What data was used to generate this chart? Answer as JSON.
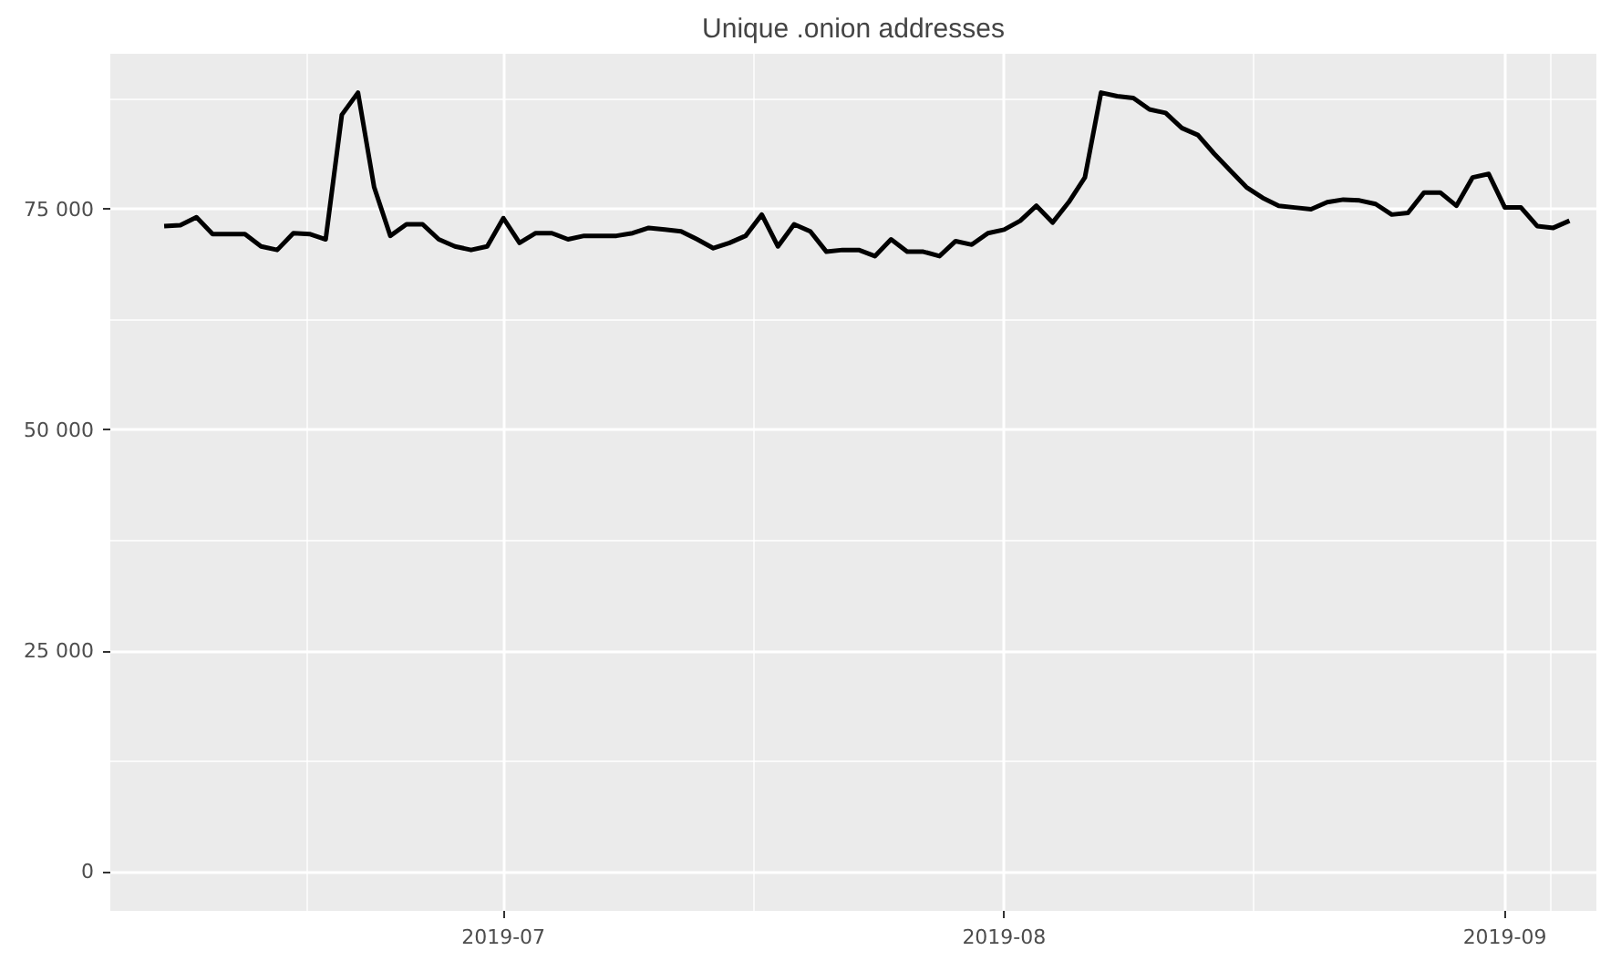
{
  "chart_data": {
    "type": "line",
    "title": "Unique .onion addresses",
    "x": [
      "2019-06-10",
      "2019-06-11",
      "2019-06-12",
      "2019-06-13",
      "2019-06-14",
      "2019-06-15",
      "2019-06-16",
      "2019-06-17",
      "2019-06-18",
      "2019-06-19",
      "2019-06-20",
      "2019-06-21",
      "2019-06-22",
      "2019-06-23",
      "2019-06-24",
      "2019-06-25",
      "2019-06-26",
      "2019-06-27",
      "2019-06-28",
      "2019-06-29",
      "2019-06-30",
      "2019-07-01",
      "2019-07-02",
      "2019-07-03",
      "2019-07-04",
      "2019-07-05",
      "2019-07-06",
      "2019-07-07",
      "2019-07-08",
      "2019-07-09",
      "2019-07-10",
      "2019-07-11",
      "2019-07-12",
      "2019-07-13",
      "2019-07-14",
      "2019-07-15",
      "2019-07-16",
      "2019-07-17",
      "2019-07-18",
      "2019-07-19",
      "2019-07-20",
      "2019-07-21",
      "2019-07-22",
      "2019-07-23",
      "2019-07-24",
      "2019-07-25",
      "2019-07-26",
      "2019-07-27",
      "2019-07-28",
      "2019-07-29",
      "2019-07-30",
      "2019-07-31",
      "2019-08-01",
      "2019-08-02",
      "2019-08-03",
      "2019-08-04",
      "2019-08-05",
      "2019-08-06",
      "2019-08-07",
      "2019-08-08",
      "2019-08-09",
      "2019-08-10",
      "2019-08-11",
      "2019-08-12",
      "2019-08-13",
      "2019-08-14",
      "2019-08-15",
      "2019-08-16",
      "2019-08-17",
      "2019-08-18",
      "2019-08-19",
      "2019-08-20",
      "2019-08-21",
      "2019-08-22",
      "2019-08-23",
      "2019-08-24",
      "2019-08-25",
      "2019-08-26",
      "2019-08-27",
      "2019-08-28",
      "2019-08-29",
      "2019-08-30",
      "2019-08-31",
      "2019-09-01",
      "2019-09-02",
      "2019-09-03",
      "2019-09-04",
      "2019-09-05"
    ],
    "series": [
      {
        "color": "#000000",
        "values": [
          73100,
          73200,
          74100,
          72200,
          72200,
          72200,
          70800,
          70400,
          72300,
          72200,
          71600,
          85700,
          88200,
          77500,
          72000,
          73300,
          73300,
          71600,
          70800,
          70400,
          70800,
          74000,
          71200,
          72300,
          72300,
          71600,
          72000,
          72000,
          72000,
          72300,
          72900,
          72700,
          72500,
          71600,
          70600,
          71200,
          72000,
          74400,
          70800,
          73300,
          72500,
          70200,
          70400,
          70400,
          69700,
          71600,
          70200,
          70200,
          69700,
          71400,
          71000,
          72300,
          72700,
          73700,
          75400,
          73500,
          75800,
          78600,
          88200,
          87800,
          87600,
          86300,
          85900,
          84200,
          83400,
          81300,
          79400,
          77500,
          76300,
          75400,
          75200,
          75000,
          75800,
          76100,
          76000,
          75600,
          74400,
          74600,
          76900,
          76900,
          75400,
          78600,
          79000,
          75200,
          75200,
          73100,
          72900,
          73700
        ]
      }
    ],
    "xlim": [
      "2019-06-06T16:00",
      "2019-09-06T16:00"
    ],
    "xticks": [
      {
        "value": "2019-07-01",
        "label": "2019-07"
      },
      {
        "value": "2019-08-01",
        "label": "2019-08"
      },
      {
        "value": "2019-09-01",
        "label": "2019-09"
      }
    ],
    "ylim": [
      -4400,
      92600
    ],
    "yticks": [
      {
        "value": 0,
        "label": "0"
      },
      {
        "value": 25000,
        "label": "25 000"
      },
      {
        "value": 50000,
        "label": "50 000"
      },
      {
        "value": 75000,
        "label": "75 000"
      }
    ],
    "grid": true,
    "line_style": "solid",
    "marker": "none"
  }
}
